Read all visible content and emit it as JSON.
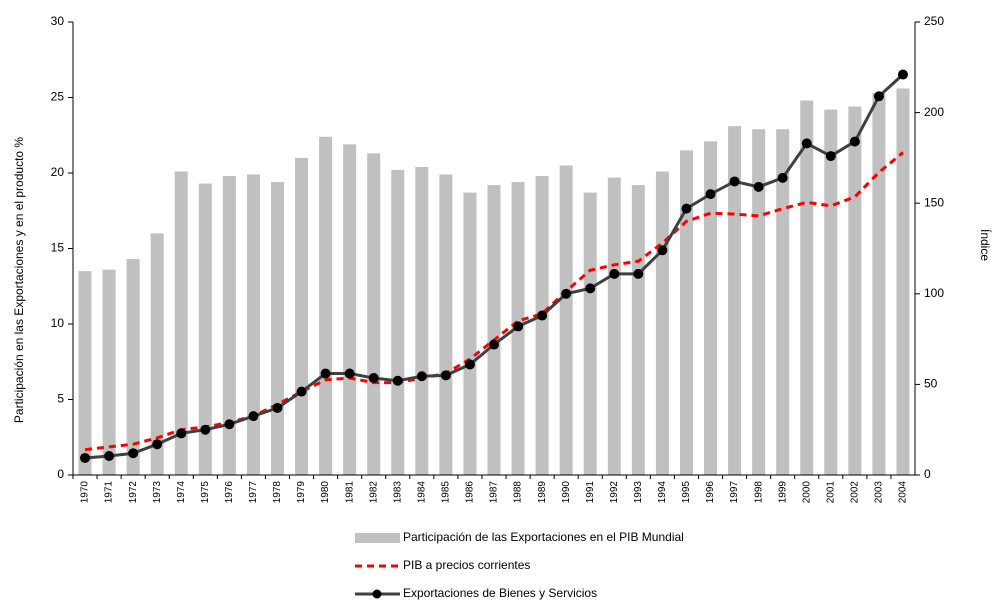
{
  "chart_data": {
    "type": "bar",
    "y_label": "Participación en las Exportaciones y en el  producto %",
    "y2_label": "Índice",
    "categories": [
      "1970",
      "1971",
      "1972",
      "1973",
      "1974",
      "1975",
      "1976",
      "1977",
      "1978",
      "1979",
      "1980",
      "1981",
      "1982",
      "1983",
      "1984",
      "1985",
      "1986",
      "1987",
      "1988",
      "1989",
      "1990",
      "1991",
      "1992",
      "1993",
      "1994",
      "1995",
      "1996",
      "1997",
      "1998",
      "1999",
      "2000",
      "2001",
      "2002",
      "2003",
      "2004"
    ],
    "series": [
      {
        "name": "Participación de las Exportaciones en el PIB Mundial",
        "type": "bar",
        "color": "#c0c0c0",
        "axis": "y",
        "values": [
          13.5,
          13.6,
          14.3,
          16.0,
          20.1,
          19.3,
          19.8,
          19.9,
          19.4,
          21.0,
          22.4,
          21.9,
          21.3,
          20.2,
          20.4,
          19.9,
          18.7,
          19.2,
          19.4,
          19.8,
          20.5,
          18.7,
          19.7,
          19.2,
          20.1,
          21.5,
          22.1,
          23.1,
          22.9,
          22.9,
          24.8,
          24.2,
          24.4,
          25.3,
          25.6
        ]
      },
      {
        "name": "PIB a precios corrientes",
        "type": "line",
        "style": "dashed",
        "color": "#ff0000",
        "axis": "y2",
        "values": [
          14,
          15.5,
          17,
          20.5,
          25,
          26.5,
          29,
          32.5,
          39,
          46,
          52.5,
          53.5,
          51,
          51,
          53.5,
          56,
          64,
          74.5,
          85,
          89,
          101.5,
          113,
          116,
          118,
          128,
          140,
          144.5,
          144,
          143,
          147,
          150.5,
          148.5,
          153.5,
          167,
          178
        ]
      },
      {
        "name": "Exportaciones de Bienes y Servicios",
        "type": "line",
        "style": "solid",
        "marker": "circle",
        "color": "#404040",
        "axis": "y2",
        "values": [
          9.4,
          10.5,
          12,
          17,
          23,
          25,
          28,
          32.5,
          37,
          46,
          56,
          56,
          53.5,
          52,
          54.5,
          55,
          61,
          72,
          82,
          88,
          100,
          103,
          111,
          111,
          124,
          147,
          155,
          162,
          159,
          164,
          183,
          176,
          184,
          209,
          221
        ]
      }
    ],
    "ylim": [
      0,
      30
    ],
    "yticks": [
      0,
      5,
      10,
      15,
      20,
      25,
      30
    ],
    "y2lim": [
      0,
      250
    ],
    "y2ticks": [
      0,
      50,
      100,
      150,
      200,
      250
    ],
    "grid": false
  }
}
